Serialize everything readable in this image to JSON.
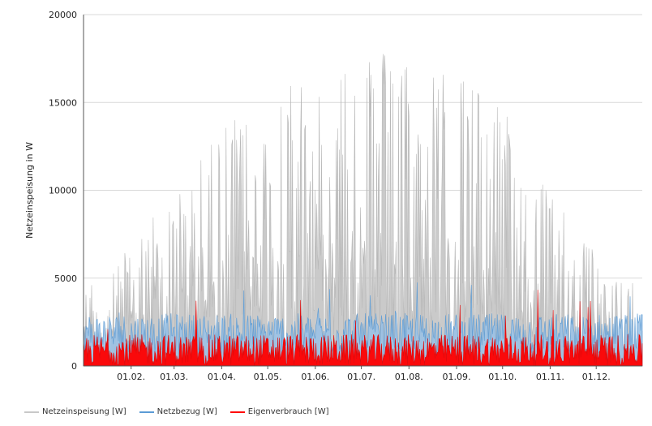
{
  "chart_data": {
    "type": "line",
    "ylabel": "Netzeinspeisung in W",
    "xlabel": "",
    "ylim": [
      0,
      20000
    ],
    "yticks": [
      "0",
      "5000",
      "10000",
      "15000",
      "20000"
    ],
    "yticks_values": [
      0,
      5000,
      10000,
      15000,
      20000
    ],
    "xticks": [
      "01.02.",
      "01.03.",
      "01.04.",
      "01.05.",
      "01.06.",
      "01.07.",
      "01.08.",
      "01.09.",
      "01.10.",
      "01.11.",
      "01.12."
    ],
    "xticks_day_of_year": [
      32,
      60,
      91,
      121,
      152,
      182,
      213,
      244,
      274,
      305,
      335
    ],
    "x_range_day_of_year": [
      1,
      365
    ],
    "grid": "horizontal",
    "legend_position": "bottom-left",
    "series": [
      {
        "name": "Netzeinspeisung [W]",
        "color": "#c8c8c8",
        "envelope_by_month": [
          {
            "month": "01",
            "peak": 5000
          },
          {
            "month": "02",
            "peak": 8500
          },
          {
            "month": "03",
            "peak": 11500
          },
          {
            "month": "04",
            "peak": 15500
          },
          {
            "month": "05",
            "peak": 16500
          },
          {
            "month": "06",
            "peak": 17500
          },
          {
            "month": "07",
            "peak": 18000
          },
          {
            "month": "08",
            "peak": 17000
          },
          {
            "month": "09",
            "peak": 16500
          },
          {
            "month": "10",
            "peak": 13000
          },
          {
            "month": "11",
            "peak": 8000
          },
          {
            "month": "12",
            "peak": 5000
          }
        ]
      },
      {
        "name": "Netzbezug [W]",
        "color": "#5b9bd5",
        "typical_peak": 3000,
        "max": 5200
      },
      {
        "name": "Eigenverbrauch [W]",
        "color": "#ff0000",
        "typical_peak": 1800,
        "max": 4700
      }
    ]
  }
}
